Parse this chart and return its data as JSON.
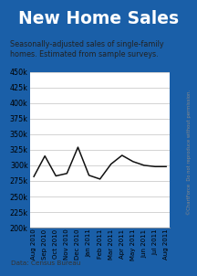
{
  "title": "New Home Sales",
  "subtitle": "Seasonally-adjusted sales of single-family\nhomes. Estimated from sample surveys.",
  "footer": "Data: Census Bureau",
  "watermark": "©ChartForce  Do not reproduce without permission.",
  "title_bg_color": "#1a5fa8",
  "title_text_color": "#ffffff",
  "plot_bg_color": "#ffffff",
  "border_color": "#1a5fa8",
  "outer_bg_color": "#1a5fa8",
  "line_color": "#111111",
  "grid_color": "#cccccc",
  "categories": [
    "Aug 2010",
    "Sep 2010",
    "Oct 2010",
    "Nov 2010",
    "Dec 2010",
    "Jan 2011",
    "Feb 2011",
    "Mar 2011",
    "Apr 2011",
    "May 2011",
    "Jun 2011",
    "Jul 2011",
    "Aug 2011"
  ],
  "values": [
    282000,
    315000,
    283000,
    287000,
    329000,
    284000,
    278000,
    302000,
    316000,
    306000,
    300000,
    298000,
    298000
  ],
  "ylim": [
    200000,
    450000
  ],
  "yticks": [
    200000,
    225000,
    250000,
    275000,
    300000,
    325000,
    350000,
    375000,
    400000,
    425000,
    450000
  ]
}
